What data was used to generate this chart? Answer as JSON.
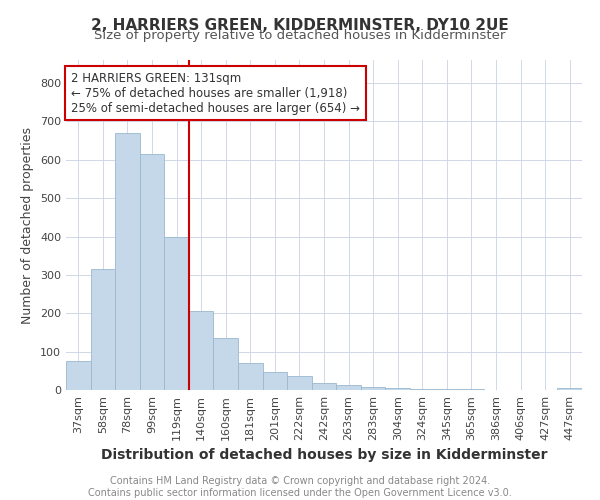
{
  "title": "2, HARRIERS GREEN, KIDDERMINSTER, DY10 2UE",
  "subtitle": "Size of property relative to detached houses in Kidderminster",
  "xlabel": "Distribution of detached houses by size in Kidderminster",
  "ylabel": "Number of detached properties",
  "categories": [
    "37sqm",
    "58sqm",
    "78sqm",
    "99sqm",
    "119sqm",
    "140sqm",
    "160sqm",
    "181sqm",
    "201sqm",
    "222sqm",
    "242sqm",
    "263sqm",
    "283sqm",
    "304sqm",
    "324sqm",
    "345sqm",
    "365sqm",
    "386sqm",
    "406sqm",
    "427sqm",
    "447sqm"
  ],
  "values": [
    75,
    315,
    670,
    615,
    400,
    205,
    135,
    70,
    47,
    37,
    18,
    12,
    8,
    5,
    3,
    3,
    2,
    1,
    1,
    1,
    5
  ],
  "bar_color": "#c5d8ea",
  "bar_edge_color": "#9ab8d0",
  "vline_x": 4.5,
  "vline_color": "#cc0000",
  "annotation_text": "2 HARRIERS GREEN: 131sqm\n← 75% of detached houses are smaller (1,918)\n25% of semi-detached houses are larger (654) →",
  "annotation_box_color": "#ffffff",
  "annotation_box_edge": "#cc0000",
  "footer_text": "Contains HM Land Registry data © Crown copyright and database right 2024.\nContains public sector information licensed under the Open Government Licence v3.0.",
  "ylim": [
    0,
    860
  ],
  "yticks": [
    0,
    100,
    200,
    300,
    400,
    500,
    600,
    700,
    800
  ],
  "bg_color": "#ffffff",
  "grid_color": "#d0d8e8",
  "title_fontsize": 11,
  "subtitle_fontsize": 9.5,
  "xlabel_fontsize": 10,
  "ylabel_fontsize": 9,
  "tick_fontsize": 8,
  "footer_fontsize": 7,
  "ann_fontsize": 8.5
}
